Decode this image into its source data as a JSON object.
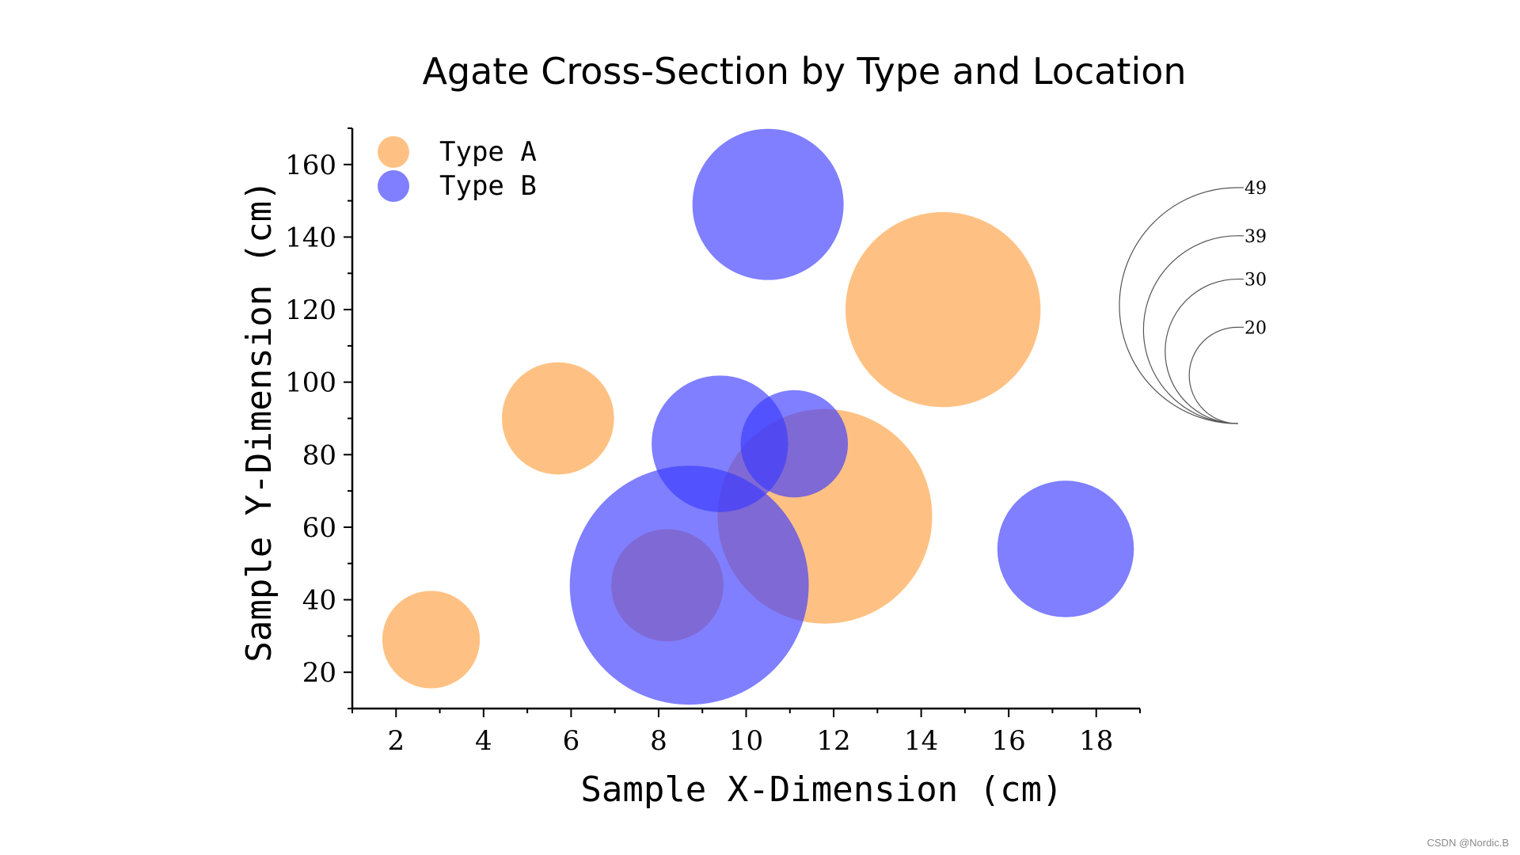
{
  "watermark": "CSDN @Nordic.B",
  "chart_data": {
    "type": "scatter",
    "subtype": "bubble",
    "title": "Agate Cross-Section by Type and Location",
    "xlabel": "Sample X-Dimension (cm)",
    "ylabel": "Sample Y-Dimension (cm)",
    "xlim": [
      1,
      19
    ],
    "ylim": [
      10,
      170
    ],
    "xticks": [
      2,
      4,
      6,
      8,
      10,
      12,
      14,
      16,
      18
    ],
    "yticks": [
      20,
      40,
      60,
      80,
      100,
      120,
      140,
      160
    ],
    "grid": false,
    "legend_position": "top-left",
    "series": [
      {
        "name": "Type A",
        "color": "#FFA040",
        "opacity": 0.65,
        "points": [
          {
            "x": 2.8,
            "y": 29,
            "size": 20
          },
          {
            "x": 5.7,
            "y": 90,
            "size": 23
          },
          {
            "x": 11.8,
            "y": 63,
            "size": 44
          },
          {
            "x": 14.5,
            "y": 120,
            "size": 40
          },
          {
            "x": 8.2,
            "y": 44,
            "size": 23
          }
        ]
      },
      {
        "name": "Type B",
        "color": "#3A3AFF",
        "opacity": 0.65,
        "points": [
          {
            "x": 8.7,
            "y": 44,
            "size": 49
          },
          {
            "x": 9.4,
            "y": 83,
            "size": 28
          },
          {
            "x": 11.1,
            "y": 83,
            "size": 22
          },
          {
            "x": 10.5,
            "y": 149,
            "size": 31
          },
          {
            "x": 17.3,
            "y": 54,
            "size": 28
          }
        ]
      }
    ],
    "size_legend": {
      "values": [
        49,
        39,
        30,
        20
      ]
    }
  }
}
